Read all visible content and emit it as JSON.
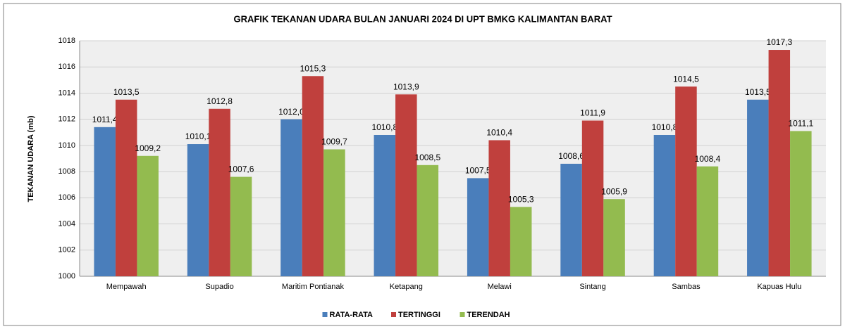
{
  "chart_data": {
    "type": "bar",
    "title": "GRAFIK  TEKANAN UDARA BULAN JANUARI 2024 DI UPT BMKG  KALIMANTAN  BARAT",
    "y_label": "TEKANAN UDARA (mb)",
    "categories": [
      "Mempawah",
      "Supadio",
      "Maritim Pontianak",
      "Ketapang",
      "Melawi",
      "Sintang",
      "Sambas",
      "Kapuas Hulu"
    ],
    "series": [
      {
        "name": "RATA-RATA",
        "color": "#4a7ebb",
        "values": [
          1011.4,
          1010.1,
          1012.0,
          1010.8,
          1007.5,
          1008.6,
          1010.8,
          1013.5
        ],
        "value_labels": [
          "1011,4",
          "1010,1",
          "1012,0",
          "1010,8",
          "1007,5",
          "1008,6",
          "1010,8",
          "1013,5"
        ]
      },
      {
        "name": "TERTINGGI",
        "color": "#c0403d",
        "values": [
          1013.5,
          1012.8,
          1015.3,
          1013.9,
          1010.4,
          1011.9,
          1014.5,
          1017.3
        ],
        "value_labels": [
          "1013,5",
          "1012,8",
          "1015,3",
          "1013,9",
          "1010,4",
          "1011,9",
          "1014,5",
          "1017,3"
        ]
      },
      {
        "name": "TERENDAH",
        "color": "#93bb4f",
        "values": [
          1009.2,
          1007.6,
          1009.7,
          1008.5,
          1005.3,
          1005.9,
          1008.4,
          1011.1
        ],
        "value_labels": [
          "1009,2",
          "1007,6",
          "1009,7",
          "1008,5",
          "1005,3",
          "1005,9",
          "1008,4",
          "1011,1"
        ]
      }
    ],
    "ylim": [
      1000,
      1018
    ],
    "yticks": [
      1000,
      1002,
      1004,
      1006,
      1008,
      1010,
      1012,
      1014,
      1016,
      1018
    ],
    "grid": true,
    "legend": "bottom"
  }
}
